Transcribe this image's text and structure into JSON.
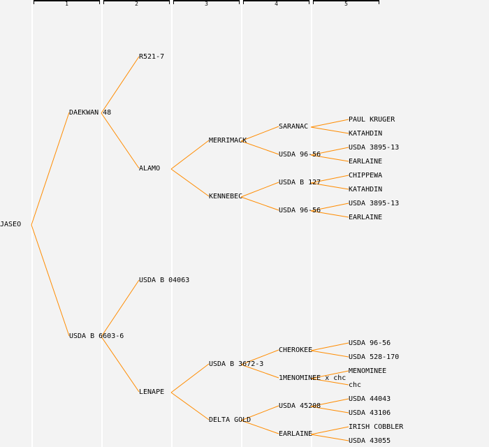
{
  "generations": [
    "1",
    "2",
    "3",
    "4",
    "5"
  ],
  "line_color": "#ff8c00",
  "tree": {
    "name": "JASEO",
    "children": [
      {
        "name": "DAEKWAN 48",
        "children": [
          {
            "name": "R521-7"
          },
          {
            "name": "ALAMO",
            "children": [
              {
                "name": "MERRIMACK",
                "children": [
                  {
                    "name": "SARANAC",
                    "children": [
                      {
                        "name": "PAUL KRUGER"
                      },
                      {
                        "name": "KATAHDIN"
                      }
                    ]
                  },
                  {
                    "name": "USDA 96-56",
                    "children": [
                      {
                        "name": "USDA 3895-13"
                      },
                      {
                        "name": "EARLAINE"
                      }
                    ]
                  }
                ]
              },
              {
                "name": "KENNEBEC",
                "children": [
                  {
                    "name": "USDA B 127",
                    "children": [
                      {
                        "name": "CHIPPEWA"
                      },
                      {
                        "name": "KATAHDIN"
                      }
                    ]
                  },
                  {
                    "name": "USDA 96-56",
                    "children": [
                      {
                        "name": "USDA 3895-13"
                      },
                      {
                        "name": "EARLAINE"
                      }
                    ]
                  }
                ]
              }
            ]
          }
        ]
      },
      {
        "name": "USDA B 6603-6",
        "children": [
          {
            "name": "USDA B 04063"
          },
          {
            "name": "LENAPE",
            "children": [
              {
                "name": "USDA B 3672-3",
                "children": [
                  {
                    "name": "CHEROKEE",
                    "children": [
                      {
                        "name": "USDA 96-56"
                      },
                      {
                        "name": "USDA 528-170"
                      }
                    ]
                  },
                  {
                    "name": "1MENOMINEE x chc",
                    "children": [
                      {
                        "name": "MENOMINEE"
                      },
                      {
                        "name": "chc"
                      }
                    ]
                  }
                ]
              },
              {
                "name": "DELTA GOLD",
                "children": [
                  {
                    "name": "USDA 45208",
                    "children": [
                      {
                        "name": "USDA 44043"
                      },
                      {
                        "name": "USDA 43106"
                      }
                    ]
                  },
                  {
                    "name": "EARLAINE",
                    "children": [
                      {
                        "name": "IRISH COBBLER"
                      },
                      {
                        "name": "USDA 43055"
                      }
                    ]
                  }
                ]
              }
            ]
          }
        ]
      }
    ]
  }
}
